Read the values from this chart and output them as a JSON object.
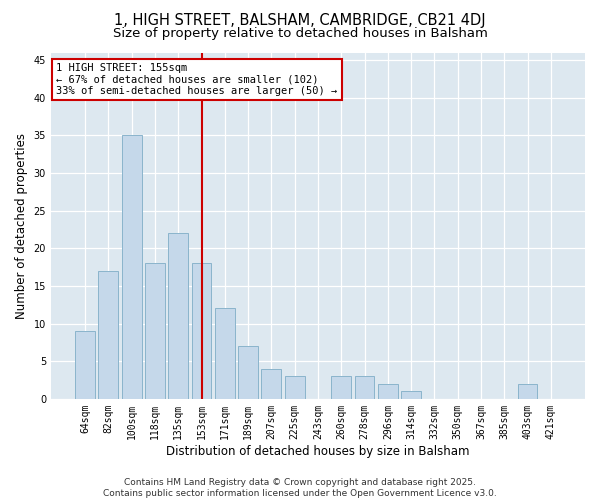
{
  "title": "1, HIGH STREET, BALSHAM, CAMBRIDGE, CB21 4DJ",
  "subtitle": "Size of property relative to detached houses in Balsham",
  "xlabel": "Distribution of detached houses by size in Balsham",
  "ylabel": "Number of detached properties",
  "categories": [
    "64sqm",
    "82sqm",
    "100sqm",
    "118sqm",
    "135sqm",
    "153sqm",
    "171sqm",
    "189sqm",
    "207sqm",
    "225sqm",
    "243sqm",
    "260sqm",
    "278sqm",
    "296sqm",
    "314sqm",
    "332sqm",
    "350sqm",
    "367sqm",
    "385sqm",
    "403sqm",
    "421sqm"
  ],
  "values": [
    9,
    17,
    35,
    18,
    22,
    18,
    12,
    7,
    4,
    3,
    0,
    3,
    3,
    2,
    1,
    0,
    0,
    0,
    0,
    2,
    0
  ],
  "bar_color": "#c5d8ea",
  "bar_edge_color": "#8ab4cc",
  "vline_x": 5,
  "vline_color": "#cc0000",
  "annotation_line1": "1 HIGH STREET: 155sqm",
  "annotation_line2": "← 67% of detached houses are smaller (102)",
  "annotation_line3": "33% of semi-detached houses are larger (50) →",
  "annotation_box_color": "#cc0000",
  "ylim": [
    0,
    46
  ],
  "yticks": [
    0,
    5,
    10,
    15,
    20,
    25,
    30,
    35,
    40,
    45
  ],
  "background_color": "#dde8f0",
  "grid_color": "#ffffff",
  "footer": "Contains HM Land Registry data © Crown copyright and database right 2025.\nContains public sector information licensed under the Open Government Licence v3.0.",
  "title_fontsize": 10.5,
  "subtitle_fontsize": 9.5,
  "axis_label_fontsize": 8.5,
  "tick_fontsize": 7,
  "annotation_fontsize": 7.5,
  "footer_fontsize": 6.5
}
